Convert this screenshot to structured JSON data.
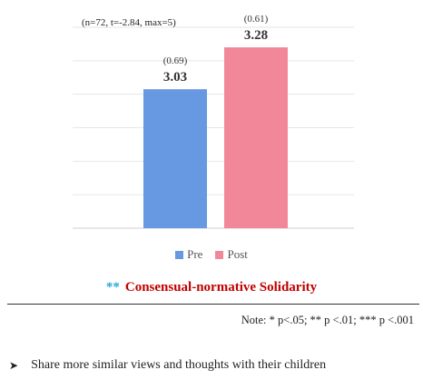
{
  "chart_data": {
    "type": "bar",
    "categories": [
      "Pre",
      "Post"
    ],
    "values": [
      3.03,
      3.28
    ],
    "value_labels": [
      "3.03",
      "3.28"
    ],
    "sd_labels": [
      "(0.69)",
      "(0.61)"
    ],
    "colors": [
      "#6699e1",
      "#f28799"
    ],
    "ylim": [
      2.2,
      3.4
    ],
    "grid": true,
    "legend": "bottom",
    "legend_entries": [
      "Pre",
      "Post"
    ],
    "stat_note": "(n=72, t=-2.84, max=5)"
  },
  "caption": {
    "stars": "**",
    "title": "Consensual-normative Solidarity"
  },
  "footnote": "Note: * p<.05; ** p <.01; *** p <.001",
  "bullet": {
    "icon": "arrow-right-icon",
    "text": "Share more similar views and thoughts with their children"
  }
}
